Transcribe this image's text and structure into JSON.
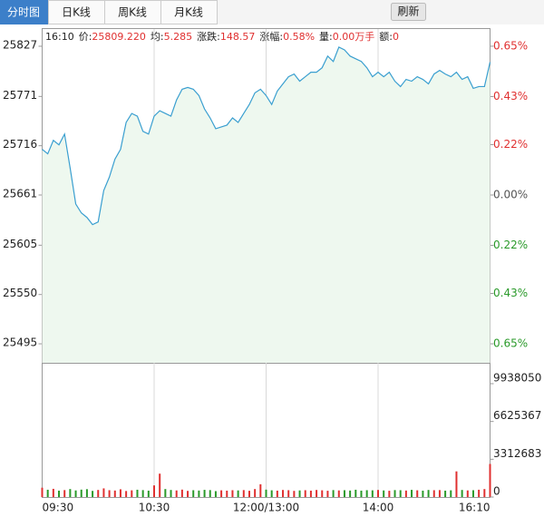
{
  "tabs": [
    "分时图",
    "日K线",
    "周K线",
    "月K线"
  ],
  "refresh_button": "刷新",
  "info": {
    "time": "16:10",
    "fields": [
      {
        "label": "价:",
        "value": "25809.220"
      },
      {
        "label": "均:",
        "value": "5.285"
      },
      {
        "label": "涨跌:",
        "value": "148.57"
      },
      {
        "label": "涨幅:",
        "value": "0.58%"
      },
      {
        "label": "量:",
        "value": "0.00万手"
      },
      {
        "label": "额:",
        "value": "0"
      }
    ]
  },
  "chart_data": [
    {
      "type": "line",
      "categories": [
        "09:30",
        null,
        null,
        null,
        null,
        null,
        null,
        null,
        null,
        null,
        null,
        null,
        null,
        null,
        null,
        null,
        null,
        null,
        null,
        null,
        "10:30",
        null,
        null,
        null,
        null,
        null,
        null,
        null,
        null,
        null,
        null,
        null,
        null,
        null,
        null,
        null,
        null,
        null,
        null,
        null,
        "12:00/13:00",
        null,
        null,
        null,
        null,
        null,
        null,
        null,
        null,
        null,
        null,
        null,
        null,
        null,
        null,
        null,
        null,
        null,
        null,
        null,
        "14:00",
        null,
        null,
        null,
        null,
        null,
        null,
        null,
        null,
        null,
        null,
        null,
        null,
        null,
        null,
        null,
        null,
        null,
        null,
        null,
        "16:10"
      ],
      "values": [
        25712,
        25707,
        25722,
        25717,
        25729,
        25691,
        25651,
        25641,
        25636,
        25628,
        25631,
        25666,
        25681,
        25701,
        25712,
        25742,
        25752,
        25749,
        25732,
        25729,
        25749,
        25755,
        25752,
        25749,
        25767,
        25779,
        25781,
        25779,
        25772,
        25757,
        25747,
        25735,
        25737,
        25739,
        25747,
        25742,
        25752,
        25762,
        25775,
        25779,
        25772,
        25762,
        25777,
        25785,
        25793,
        25796,
        25788,
        25793,
        25798,
        25798,
        25803,
        25816,
        25810,
        25826,
        25823,
        25816,
        25813,
        25810,
        25803,
        25793,
        25798,
        25793,
        25798,
        25788,
        25782,
        25790,
        25788,
        25793,
        25790,
        25785,
        25796,
        25800,
        25796,
        25793,
        25798,
        25790,
        25793,
        25780,
        25782,
        25782,
        25809.22
      ],
      "color": "#3a9fd0",
      "fill_color": "#eef8ef",
      "ylim": [
        25473.8,
        25846.2
      ],
      "yticks": [
        25827,
        25771,
        25716,
        25661,
        25605,
        25550,
        25495
      ],
      "y2lim": [
        -0.733,
        0.725
      ],
      "y2ticks": [
        {
          "value": 0.65,
          "label": "0.65%"
        },
        {
          "value": 0.43,
          "label": "0.43%"
        },
        {
          "value": 0.22,
          "label": "0.22%"
        },
        {
          "value": 0,
          "label": "0.00%"
        },
        {
          "value": -0.22,
          "label": "0.22%"
        },
        {
          "value": -0.43,
          "label": "0.43%"
        },
        {
          "value": -0.65,
          "label": "0.65%"
        }
      ],
      "up_color": "#e03030",
      "down_color": "#2a9a2a",
      "zero_color": "#555555"
    },
    {
      "type": "bar",
      "values": [
        820000,
        640000,
        720000,
        560000,
        610000,
        700000,
        580000,
        650000,
        690000,
        540000,
        620000,
        760000,
        600000,
        570000,
        680000,
        530000,
        590000,
        640000,
        610000,
        560000,
        1020000,
        2050000,
        700000,
        620000,
        580000,
        650000,
        540000,
        600000,
        570000,
        630000,
        610000,
        520000,
        590000,
        560000,
        600000,
        580000,
        610000,
        550000,
        700000,
        1120000,
        650000,
        590000,
        560000,
        620000,
        600000,
        540000,
        580000,
        600000,
        560000,
        620000,
        590000,
        550000,
        610000,
        580000,
        600000,
        570000,
        640000,
        560000,
        600000,
        590000,
        620000,
        580000,
        550000,
        610000,
        600000,
        570000,
        630000,
        590000,
        560000,
        620000,
        600000,
        610000,
        560000,
        590000,
        2250000,
        620000,
        580000,
        600000,
        640000,
        700000,
        2900000
      ],
      "up_color": "#e03030",
      "down_color": "#2a9a2a",
      "ylim": [
        0,
        11766650
      ],
      "yticks": [
        9938050,
        6625367,
        3312683,
        0
      ]
    }
  ]
}
